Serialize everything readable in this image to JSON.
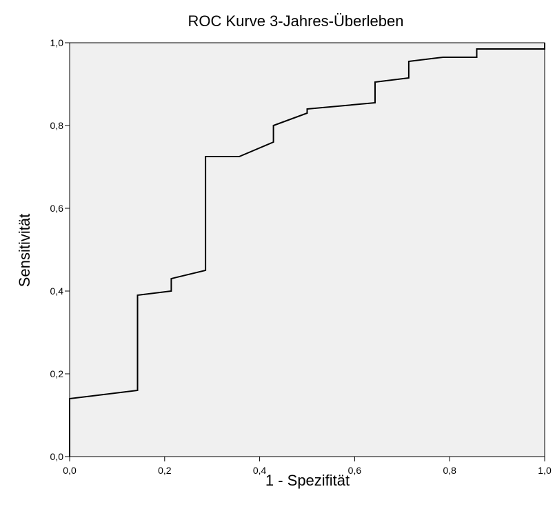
{
  "chart_data": {
    "type": "line",
    "title": "ROC Kurve 3-Jahres-Überleben",
    "xlabel": "1 - Spezifität",
    "ylabel": "Sensitivität",
    "xlim": [
      0,
      1
    ],
    "ylim": [
      0,
      1
    ],
    "xticks": [
      "0,0",
      "0,2",
      "0,4",
      "0,6",
      "0,8",
      "1,0"
    ],
    "yticks": [
      "0,0",
      "0,2",
      "0,4",
      "0,6",
      "0,8",
      "1,0"
    ],
    "grid": false,
    "legend": "none",
    "colors": {
      "plot_background": "#f0f0f0",
      "line": "#000000",
      "axis": "#000000"
    },
    "series": [
      {
        "x": [
          0,
          0,
          0.143,
          0.143,
          0.214,
          0.214,
          0.286,
          0.286,
          0.357,
          0.429,
          0.429,
          0.5,
          0.5,
          0.643,
          0.643,
          0.714,
          0.714,
          0.786,
          0.857,
          0.857,
          1.0,
          1.0
        ],
        "y": [
          0,
          0.14,
          0.16,
          0.39,
          0.4,
          0.43,
          0.45,
          0.725,
          0.725,
          0.76,
          0.8,
          0.83,
          0.84,
          0.855,
          0.905,
          0.915,
          0.955,
          0.965,
          0.965,
          0.985,
          0.985,
          1.0
        ]
      }
    ]
  }
}
